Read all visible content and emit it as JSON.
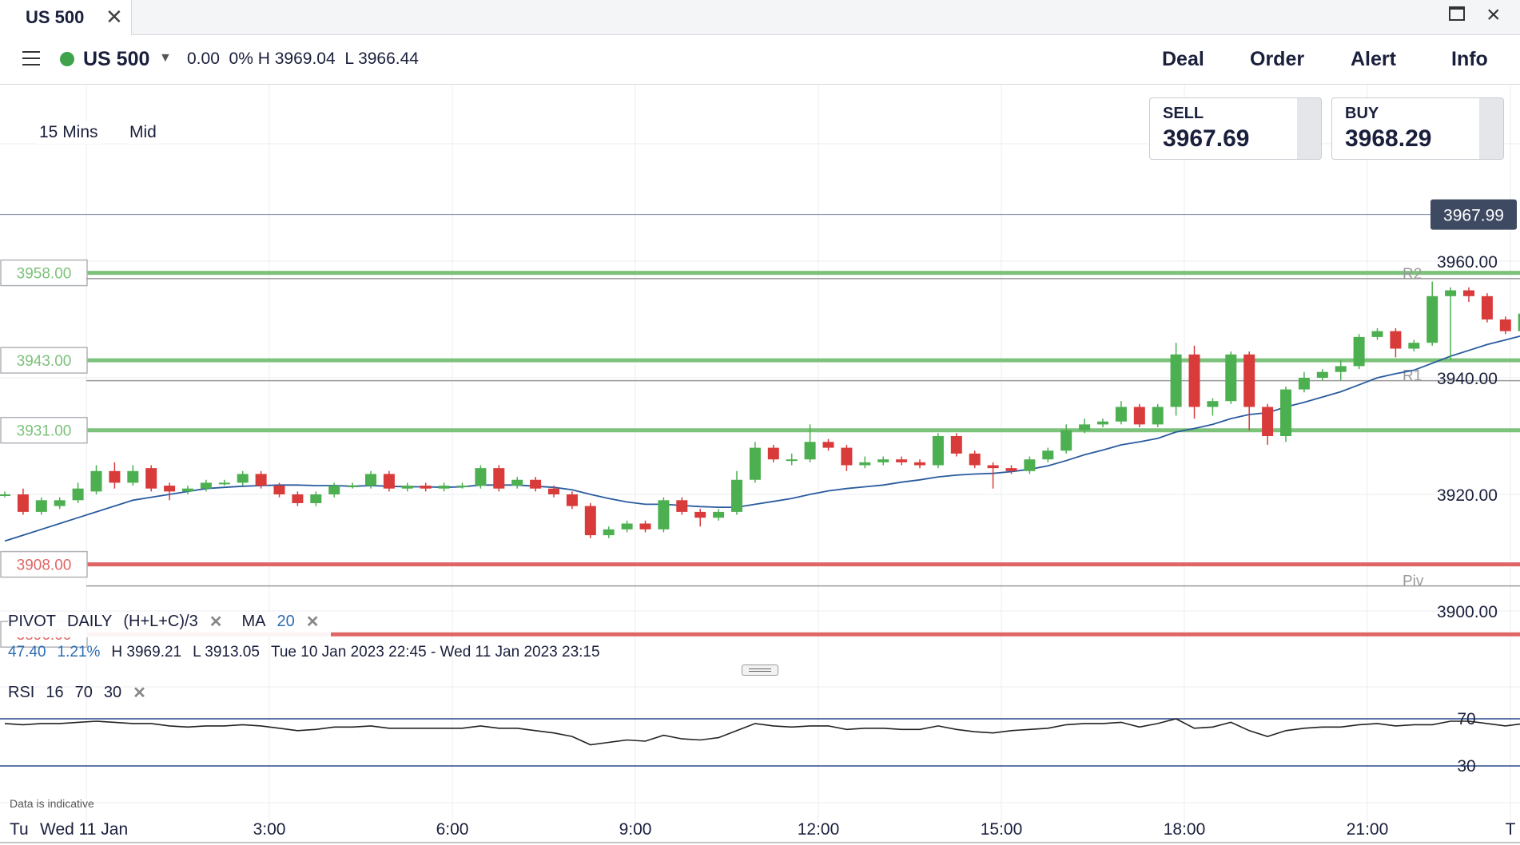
{
  "window": {
    "tab_title": "US 500",
    "tab_close": "✕"
  },
  "header": {
    "instrument": "US 500",
    "change": "0.00",
    "change_pct": "0%",
    "high": "H 3969.04",
    "low": "L 3966.44",
    "buttons": {
      "deal": "Deal",
      "order": "Order",
      "alert": "Alert",
      "info": "Info"
    },
    "status_color": "#3fa34d"
  },
  "toolbar": {
    "timeframe": "15 Mins",
    "price_type": "Mid"
  },
  "prices": {
    "sell_label": "SELL",
    "sell": "3967.69",
    "buy_label": "BUY",
    "buy": "3968.29",
    "last": "3967.99"
  },
  "legend": {
    "pivot": "PIVOT",
    "pivot_period": "DAILY",
    "pivot_formula": "(H+L+C)/3",
    "ma": "MA",
    "ma_period": "20",
    "change": "47.40",
    "change_pct": "1.21%",
    "high": "H 3969.21",
    "low": "L 3913.05",
    "range": "Tue 10 Jan 2023 22:45 - Wed 11 Jan 2023 23:15",
    "rsi": "RSI",
    "rsi_period": "16",
    "rsi_upper": "70",
    "rsi_lower": "30",
    "remove": "✕"
  },
  "disclaimer": "Data is indicative",
  "colors": {
    "up": "#4caf50",
    "down": "#d93a3a",
    "ma": "#2a5b9e",
    "alert_green": "#7cc27a",
    "alert_red": "#e06666",
    "pivot": "#9a9a9a"
  },
  "chart_data": {
    "type": "candlestick",
    "y_ticks": [
      "3960.00",
      "3940.00",
      "3920.00",
      "3900.00"
    ],
    "y_range": [
      3893,
      3993
    ],
    "x_ticks": [
      "Tu",
      "Wed 11 Jan",
      "3:00",
      "6:00",
      "9:00",
      "12:00",
      "15:00",
      "18:00",
      "21:00",
      "T"
    ],
    "price_alert_levels": [
      {
        "label": "3958.00",
        "value": 3958,
        "color": "#7cc27a"
      },
      {
        "label": "3943.00",
        "value": 3943,
        "color": "#7cc27a"
      },
      {
        "label": "3931.00",
        "value": 3931,
        "color": "#7cc27a"
      },
      {
        "label": "3908.00",
        "value": 3908,
        "color": "#e06666"
      },
      {
        "label": "3896.00",
        "value": 3896,
        "color": "#e06666"
      }
    ],
    "pivot_levels": [
      {
        "label": "R2",
        "value": 3957
      },
      {
        "label": "R1",
        "value": 3939.5
      },
      {
        "label": "Piv",
        "value": 3904.3
      }
    ],
    "last_price": 3967.99,
    "candles": [
      [
        3920.0,
        3920.0,
        3919.5,
        3920.5
      ],
      [
        3920,
        3917,
        3921,
        3916.5
      ],
      [
        3917,
        3919,
        3919.5,
        3916.5
      ],
      [
        3918,
        3919,
        3919.5,
        3917.5
      ],
      [
        3919,
        3921,
        3922,
        3918.5
      ],
      [
        3920.5,
        3924,
        3925,
        3920
      ],
      [
        3924,
        3922,
        3925.5,
        3921
      ],
      [
        3922,
        3924,
        3925,
        3921.5
      ],
      [
        3924.5,
        3921,
        3925,
        3920.5
      ],
      [
        3921.5,
        3920.5,
        3922,
        3919
      ],
      [
        3920.5,
        3921,
        3921.5,
        3920
      ],
      [
        3921,
        3922,
        3922.5,
        3920.5
      ],
      [
        3922,
        3922,
        3922.5,
        3921.5
      ],
      [
        3922,
        3923.5,
        3924,
        3921.5
      ],
      [
        3923.5,
        3921.5,
        3924,
        3921
      ],
      [
        3921.5,
        3920,
        3922,
        3919.5
      ],
      [
        3920,
        3918.5,
        3920.5,
        3918
      ],
      [
        3918.5,
        3920,
        3920.5,
        3918
      ],
      [
        3920,
        3921.5,
        3922,
        3919.5
      ],
      [
        3921.5,
        3921.5,
        3922,
        3921
      ],
      [
        3921.5,
        3923.5,
        3924,
        3921
      ],
      [
        3923.5,
        3921,
        3924,
        3920.5
      ],
      [
        3921,
        3921.5,
        3922,
        3920.5
      ],
      [
        3921.5,
        3921,
        3922,
        3920.5
      ],
      [
        3921,
        3921.5,
        3922,
        3920.5
      ],
      [
        3921.5,
        3921.5,
        3922,
        3921
      ],
      [
        3921.5,
        3924.5,
        3925,
        3921
      ],
      [
        3924.5,
        3921,
        3925,
        3920.5
      ],
      [
        3921.5,
        3922.5,
        3923,
        3921
      ],
      [
        3922.5,
        3921,
        3923,
        3920.5
      ],
      [
        3921,
        3920,
        3921.5,
        3919.5
      ],
      [
        3920,
        3918,
        3920.5,
        3917.5
      ],
      [
        3918,
        3913,
        3918.5,
        3912.5
      ],
      [
        3913,
        3914,
        3914.5,
        3912.5
      ],
      [
        3914,
        3915,
        3915.5,
        3913.5
      ],
      [
        3915,
        3914,
        3915.5,
        3913.5
      ],
      [
        3914,
        3919,
        3919.5,
        3913.5
      ],
      [
        3919,
        3917,
        3919.5,
        3916.5
      ],
      [
        3917,
        3916,
        3917.5,
        3914.5
      ],
      [
        3916,
        3917,
        3917.5,
        3915.5
      ],
      [
        3917,
        3922.5,
        3924,
        3916.5
      ],
      [
        3922.5,
        3928,
        3929,
        3922
      ],
      [
        3928,
        3926,
        3928.5,
        3925.5
      ],
      [
        3926,
        3926,
        3927,
        3925
      ],
      [
        3926,
        3929,
        3932,
        3925.5
      ],
      [
        3929,
        3928,
        3929.5,
        3927.5
      ],
      [
        3928,
        3925,
        3928.5,
        3924
      ],
      [
        3925,
        3925.5,
        3926.5,
        3924.5
      ],
      [
        3925.5,
        3926,
        3926.5,
        3925
      ],
      [
        3926,
        3925.5,
        3926.5,
        3925
      ],
      [
        3925.5,
        3925,
        3926,
        3924.5
      ],
      [
        3925,
        3930,
        3930.5,
        3924.5
      ],
      [
        3930,
        3927,
        3930.5,
        3926.5
      ],
      [
        3927,
        3925,
        3927.5,
        3924.5
      ],
      [
        3925,
        3924.5,
        3925.5,
        3921
      ],
      [
        3924.5,
        3924,
        3925,
        3923.5
      ],
      [
        3924,
        3926,
        3926.5,
        3923.5
      ],
      [
        3926,
        3927.5,
        3928,
        3925.5
      ],
      [
        3927.5,
        3931,
        3932,
        3927
      ],
      [
        3931,
        3932,
        3933,
        3930.5
      ],
      [
        3932,
        3932.5,
        3933,
        3931.5
      ],
      [
        3932.5,
        3935,
        3936,
        3932
      ],
      [
        3935,
        3932,
        3935.5,
        3931.5
      ],
      [
        3932,
        3935,
        3935.5,
        3931.5
      ],
      [
        3935,
        3944,
        3946,
        3933.5
      ],
      [
        3944,
        3935,
        3945.5,
        3933
      ],
      [
        3935,
        3936,
        3936.5,
        3933.5
      ],
      [
        3936,
        3944,
        3944.5,
        3935.5
      ],
      [
        3944,
        3935,
        3944.5,
        3931
      ],
      [
        3935,
        3930,
        3935.5,
        3928.5
      ],
      [
        3930,
        3938,
        3938.5,
        3929
      ],
      [
        3938,
        3940,
        3941,
        3937.5
      ],
      [
        3940,
        3941,
        3941.5,
        3939.5
      ],
      [
        3941,
        3942,
        3943,
        3939.5
      ],
      [
        3942,
        3947,
        3947.5,
        3941.5
      ],
      [
        3947,
        3948,
        3948.5,
        3946.5
      ],
      [
        3948,
        3945,
        3948.5,
        3943.5
      ],
      [
        3945,
        3946,
        3946.5,
        3944.5
      ],
      [
        3946,
        3954,
        3956.5,
        3945.5
      ],
      [
        3954,
        3955,
        3955.5,
        3943
      ],
      [
        3955,
        3954,
        3955.5,
        3953
      ],
      [
        3954,
        3950,
        3954.5,
        3949.5
      ],
      [
        3950,
        3948,
        3950.5,
        3947.5
      ],
      [
        3948,
        3951,
        3951.5,
        3947.5
      ],
      [
        3951,
        3952,
        3954.5,
        3950.5
      ],
      [
        3952,
        3959,
        3959.5,
        3951.5
      ],
      [
        3959,
        3957,
        3959.5,
        3956
      ],
      [
        3957,
        3960,
        3961,
        3956.5
      ],
      [
        3960,
        3960,
        3963,
        3958
      ],
      [
        3960,
        3959,
        3960.5,
        3954.5
      ],
      [
        3959,
        3968,
        3969,
        3958.5
      ]
    ],
    "ma_values": [
      3912,
      3913,
      3914,
      3915,
      3916,
      3917,
      3918,
      3919,
      3919.5,
      3920,
      3920.5,
      3921,
      3921.2,
      3921.4,
      3921.5,
      3921.6,
      3921.6,
      3921.5,
      3921.5,
      3921.4,
      3921.5,
      3921.4,
      3921.3,
      3921.3,
      3921.2,
      3921.3,
      3921.6,
      3921.6,
      3921.6,
      3921.4,
      3921.2,
      3920.8,
      3920.0,
      3919.3,
      3918.7,
      3918.3,
      3918.3,
      3918.1,
      3917.9,
      3917.8,
      3917.8,
      3918.3,
      3918.8,
      3919.3,
      3920.0,
      3920.6,
      3921.0,
      3921.3,
      3921.6,
      3922.1,
      3922.5,
      3923.0,
      3923.3,
      3923.5,
      3923.6,
      3923.9,
      3924.3,
      3924.9,
      3925.8,
      3926.8,
      3927.6,
      3928.5,
      3929.0,
      3929.6,
      3930.7,
      3931.3,
      3932.0,
      3933.0,
      3933.7,
      3934.0,
      3935.0,
      3935.8,
      3936.7,
      3937.6,
      3938.8,
      3940.0,
      3940.7,
      3941.3,
      3942.5,
      3943.7,
      3944.7,
      3945.7,
      3946.5,
      3947.3,
      3948.0,
      3949.2,
      3950.3,
      3951.3,
      3952.3,
      3953.0,
      3954.4
    ],
    "rsi_values": [
      66,
      65,
      66,
      66,
      67,
      68,
      67,
      66,
      66,
      64,
      63,
      64,
      64,
      65,
      64,
      62,
      60,
      61,
      63,
      63,
      64,
      62,
      62,
      62,
      62,
      62,
      64,
      62,
      62,
      60,
      58,
      55,
      48,
      50,
      52,
      51,
      56,
      53,
      52,
      54,
      60,
      66,
      64,
      63,
      64,
      64,
      61,
      62,
      62,
      61,
      61,
      64,
      61,
      59,
      58,
      60,
      61,
      62,
      65,
      66,
      66,
      67,
      63,
      66,
      70,
      62,
      63,
      67,
      60,
      55,
      60,
      62,
      63,
      63,
      65,
      66,
      64,
      65,
      65,
      68,
      68,
      66,
      64,
      66,
      67,
      69,
      66,
      68,
      68,
      67,
      71
    ],
    "rsi_levels": [
      70,
      30
    ]
  }
}
